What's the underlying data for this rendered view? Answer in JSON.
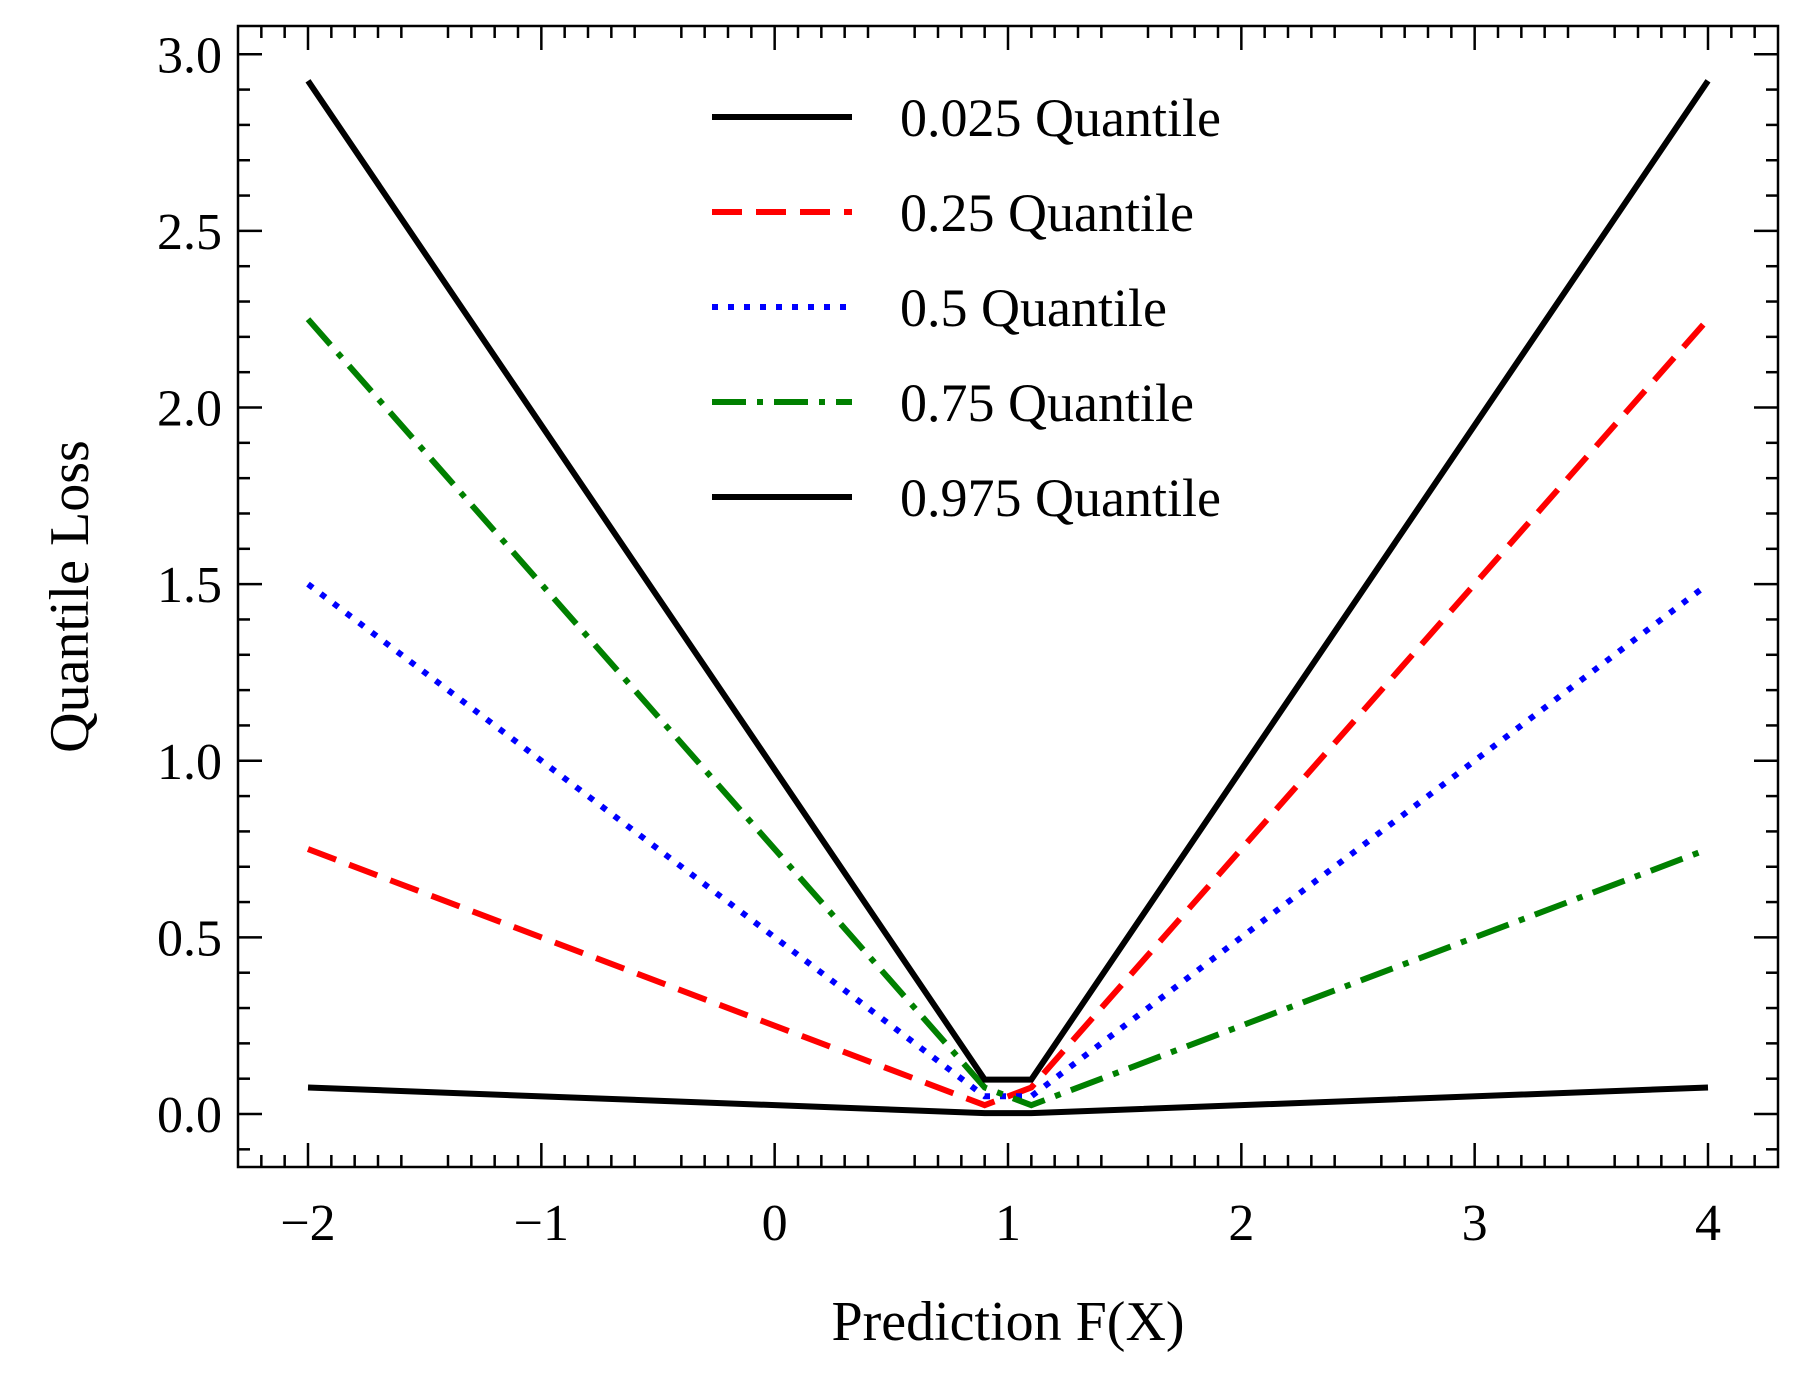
{
  "chart_data": {
    "type": "line",
    "title": "",
    "xlabel": "Prediction F(X)",
    "ylabel": "Quantile Loss",
    "xlim": [
      -2.3,
      4.3
    ],
    "ylim": [
      -0.15,
      3.08
    ],
    "xticks": [
      -2,
      -1,
      0,
      1,
      2,
      3,
      4
    ],
    "xtick_labels": [
      "−2",
      "−1",
      "0",
      "1",
      "2",
      "3",
      "4"
    ],
    "yticks": [
      0.0,
      0.5,
      1.0,
      1.5,
      2.0,
      2.5,
      3.0
    ],
    "ytick_labels": [
      "0.0",
      "0.5",
      "1.0",
      "1.5",
      "2.0",
      "2.5",
      "3.0"
    ],
    "grid": false,
    "legend": "upper-center",
    "series": [
      {
        "name": "0.025 Quantile",
        "color": "#000000",
        "style": "solid",
        "x": [
          -2,
          0.9,
          1.1,
          4
        ],
        "y": [
          0.075,
          0.0025,
          0.0025,
          0.075
        ]
      },
      {
        "name": "0.25 Quantile",
        "color": "#ff0000",
        "style": "dashed",
        "x": [
          -2,
          0.9,
          1.1,
          4
        ],
        "y": [
          0.75,
          0.025,
          0.075,
          2.25
        ]
      },
      {
        "name": "0.5 Quantile",
        "color": "#0000ff",
        "style": "dotted",
        "x": [
          -2,
          0.9,
          1.1,
          4
        ],
        "y": [
          1.5,
          0.05,
          0.05,
          1.5
        ]
      },
      {
        "name": "0.75 Quantile",
        "color": "#008000",
        "style": "dashdot",
        "x": [
          -2,
          0.9,
          1.1,
          4
        ],
        "y": [
          2.25,
          0.075,
          0.025,
          0.75
        ]
      },
      {
        "name": "0.975 Quantile",
        "color": "#000000",
        "style": "solid",
        "x": [
          -2,
          0.9,
          1.1,
          4
        ],
        "y": [
          2.925,
          0.0975,
          0.0975,
          2.925
        ]
      }
    ]
  }
}
